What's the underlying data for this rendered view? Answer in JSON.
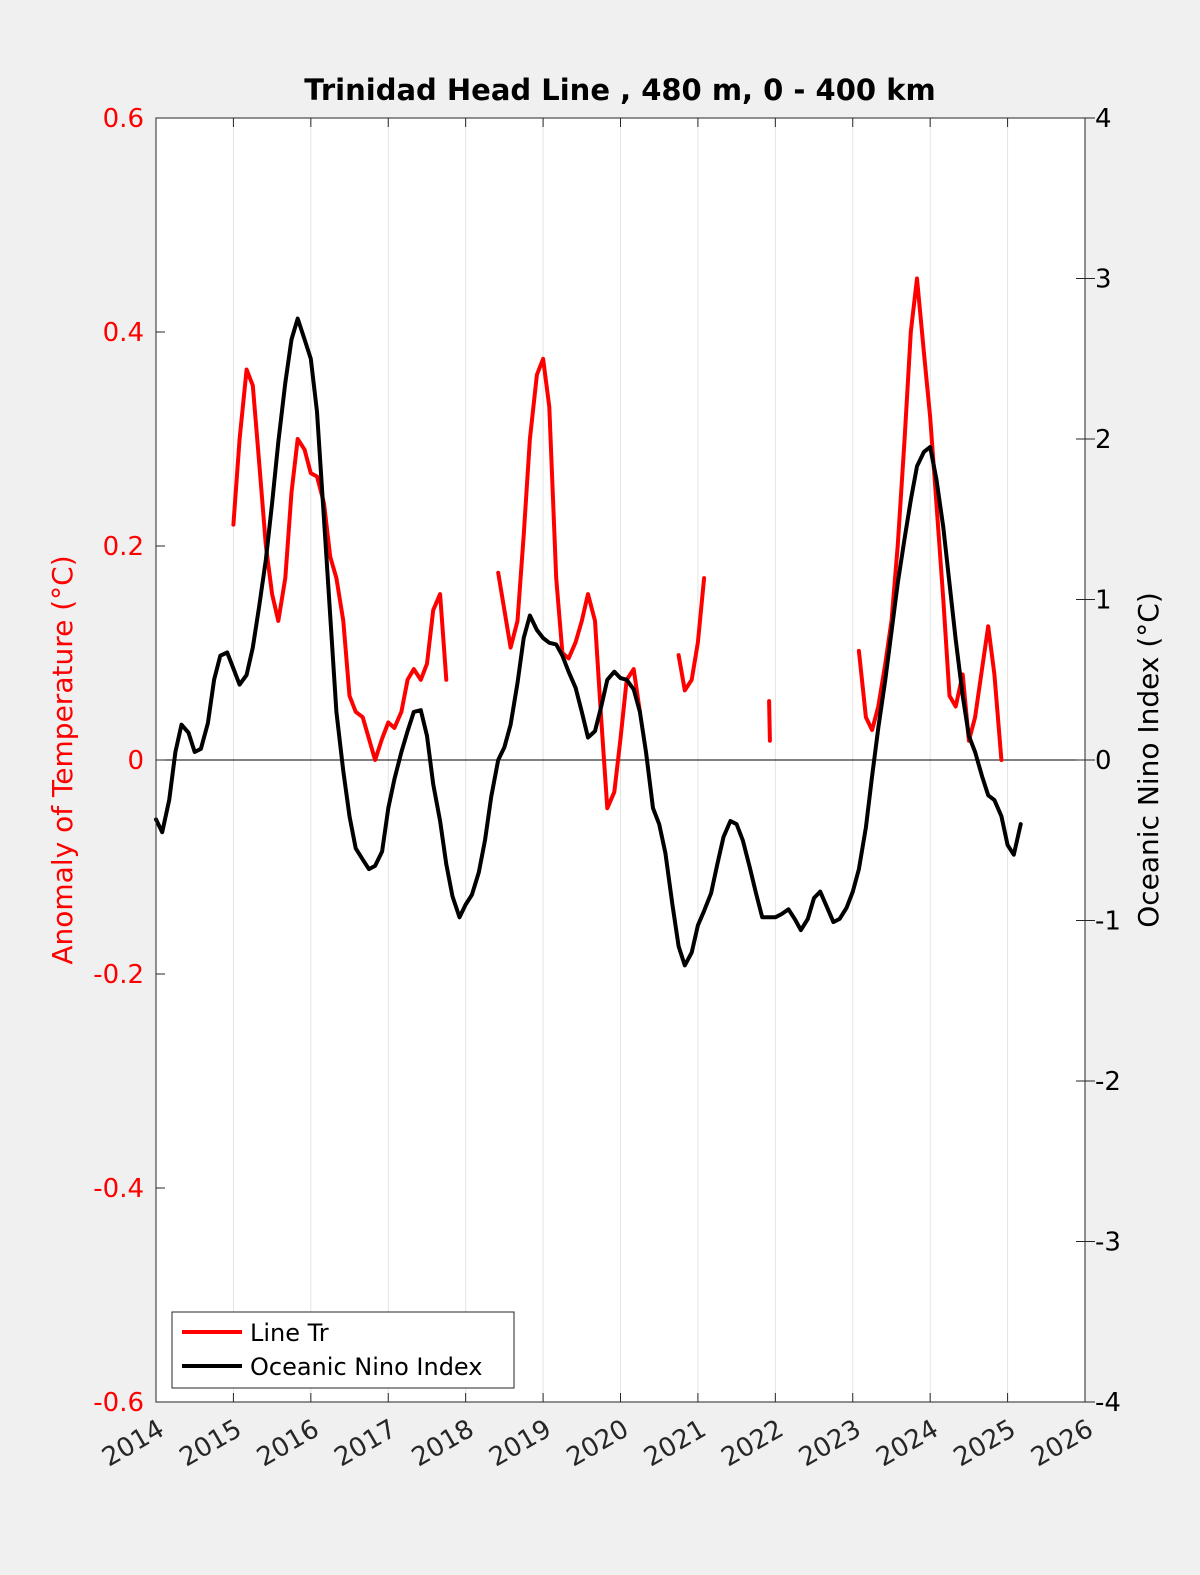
{
  "chart_data": {
    "type": "line",
    "title": "Trinidad Head Line , 480 m, 0 - 400 km",
    "xlabel": "",
    "ylabel_left": "Anomaly of Temperature (°C)",
    "ylabel_right": "Oceanic Nino Index (°C)",
    "xlim": [
      2014,
      2026
    ],
    "ylim_left": [
      -0.6,
      0.6
    ],
    "ylim_right": [
      -4,
      4
    ],
    "x_ticks": [
      "2014",
      "2015",
      "2016",
      "2017",
      "2018",
      "2019",
      "2020",
      "2021",
      "2022",
      "2023",
      "2024",
      "2025",
      "2026"
    ],
    "y_ticks_left": [
      "-0.6",
      "-0.4",
      "-0.2",
      "0",
      "0.2",
      "0.4",
      "0.6"
    ],
    "y_ticks_right": [
      "-4",
      "-3",
      "-2",
      "-1",
      "0",
      "1",
      "2",
      "3",
      "4"
    ],
    "grid": "vertical",
    "legend_position": "bottom-left",
    "colors": {
      "line_tr": "#ff0000",
      "oni": "#000000",
      "left_axis": "#ff0000",
      "right_axis": "#000000"
    },
    "series": [
      {
        "name": "Line Tr",
        "axis": "left",
        "segments": [
          [
            [
              2015.0,
              0.22
            ],
            [
              2015.08,
              0.3
            ],
            [
              2015.17,
              0.365
            ],
            [
              2015.25,
              0.35
            ],
            [
              2015.33,
              0.28
            ],
            [
              2015.42,
              0.2
            ],
            [
              2015.5,
              0.155
            ],
            [
              2015.58,
              0.13
            ],
            [
              2015.67,
              0.17
            ],
            [
              2015.75,
              0.25
            ],
            [
              2015.83,
              0.3
            ],
            [
              2015.92,
              0.29
            ],
            [
              2016.0,
              0.268
            ],
            [
              2016.08,
              0.265
            ],
            [
              2016.17,
              0.24
            ],
            [
              2016.25,
              0.19
            ],
            [
              2016.33,
              0.17
            ],
            [
              2016.42,
              0.13
            ],
            [
              2016.5,
              0.06
            ],
            [
              2016.58,
              0.045
            ],
            [
              2016.67,
              0.04
            ],
            [
              2016.75,
              0.02
            ],
            [
              2016.83,
              0.0
            ],
            [
              2016.92,
              0.02
            ],
            [
              2017.0,
              0.035
            ],
            [
              2017.08,
              0.03
            ],
            [
              2017.17,
              0.045
            ],
            [
              2017.25,
              0.075
            ],
            [
              2017.33,
              0.085
            ],
            [
              2017.42,
              0.075
            ],
            [
              2017.5,
              0.09
            ],
            [
              2017.58,
              0.14
            ],
            [
              2017.67,
              0.155
            ],
            [
              2017.75,
              0.075
            ]
          ],
          [
            [
              2018.42,
              0.175
            ],
            [
              2018.5,
              0.14
            ],
            [
              2018.58,
              0.105
            ],
            [
              2018.67,
              0.13
            ],
            [
              2018.75,
              0.21
            ],
            [
              2018.83,
              0.3
            ],
            [
              2018.92,
              0.36
            ],
            [
              2019.0,
              0.375
            ],
            [
              2019.08,
              0.33
            ],
            [
              2019.17,
              0.17
            ],
            [
              2019.25,
              0.1
            ],
            [
              2019.33,
              0.095
            ],
            [
              2019.42,
              0.11
            ],
            [
              2019.5,
              0.13
            ],
            [
              2019.58,
              0.155
            ],
            [
              2019.67,
              0.13
            ],
            [
              2019.75,
              0.04
            ],
            [
              2019.83,
              -0.045
            ],
            [
              2019.92,
              -0.03
            ],
            [
              2020.0,
              0.02
            ],
            [
              2020.08,
              0.075
            ],
            [
              2020.17,
              0.085
            ],
            [
              2020.25,
              0.045
            ]
          ],
          [
            [
              2020.75,
              0.098
            ],
            [
              2020.83,
              0.065
            ],
            [
              2020.92,
              0.075
            ],
            [
              2021.0,
              0.11
            ],
            [
              2021.08,
              0.17
            ]
          ],
          [
            [
              2021.92,
              0.055
            ],
            [
              2021.93,
              0.018
            ]
          ],
          [
            [
              2023.08,
              0.102
            ],
            [
              2023.17,
              0.04
            ],
            [
              2023.25,
              0.028
            ],
            [
              2023.33,
              0.05
            ],
            [
              2023.42,
              0.09
            ],
            [
              2023.5,
              0.13
            ],
            [
              2023.58,
              0.2
            ],
            [
              2023.67,
              0.3
            ],
            [
              2023.75,
              0.4
            ],
            [
              2023.83,
              0.45
            ],
            [
              2023.92,
              0.38
            ],
            [
              2024.0,
              0.32
            ],
            [
              2024.08,
              0.24
            ],
            [
              2024.17,
              0.15
            ],
            [
              2024.25,
              0.06
            ],
            [
              2024.33,
              0.05
            ],
            [
              2024.42,
              0.08
            ],
            [
              2024.5,
              0.018
            ],
            [
              2024.58,
              0.04
            ],
            [
              2024.67,
              0.085
            ],
            [
              2024.75,
              0.125
            ],
            [
              2024.83,
              0.08
            ],
            [
              2024.92,
              0.0
            ]
          ]
        ]
      },
      {
        "name": "Oceanic Nino Index",
        "axis": "right",
        "segments": [
          [
            [
              2014.0,
              -0.37
            ],
            [
              2014.08,
              -0.45
            ],
            [
              2014.17,
              -0.25
            ],
            [
              2014.25,
              0.05
            ],
            [
              2014.33,
              0.22
            ],
            [
              2014.42,
              0.17
            ],
            [
              2014.5,
              0.05
            ],
            [
              2014.58,
              0.07
            ],
            [
              2014.67,
              0.23
            ],
            [
              2014.75,
              0.5
            ],
            [
              2014.83,
              0.65
            ],
            [
              2014.92,
              0.67
            ],
            [
              2015.0,
              0.57
            ],
            [
              2015.08,
              0.47
            ],
            [
              2015.17,
              0.53
            ],
            [
              2015.25,
              0.7
            ],
            [
              2015.33,
              0.95
            ],
            [
              2015.42,
              1.25
            ],
            [
              2015.5,
              1.6
            ],
            [
              2015.58,
              1.98
            ],
            [
              2015.67,
              2.35
            ],
            [
              2015.75,
              2.62
            ],
            [
              2015.83,
              2.75
            ],
            [
              2015.92,
              2.62
            ],
            [
              2016.0,
              2.5
            ],
            [
              2016.08,
              2.17
            ],
            [
              2016.17,
              1.5
            ],
            [
              2016.25,
              0.9
            ],
            [
              2016.33,
              0.3
            ],
            [
              2016.42,
              -0.07
            ],
            [
              2016.5,
              -0.35
            ],
            [
              2016.58,
              -0.55
            ],
            [
              2016.67,
              -0.62
            ],
            [
              2016.75,
              -0.68
            ],
            [
              2016.83,
              -0.66
            ],
            [
              2016.92,
              -0.57
            ],
            [
              2017.0,
              -0.3
            ],
            [
              2017.08,
              -0.12
            ],
            [
              2017.17,
              0.05
            ],
            [
              2017.25,
              0.18
            ],
            [
              2017.33,
              0.3
            ],
            [
              2017.42,
              0.31
            ],
            [
              2017.5,
              0.15
            ],
            [
              2017.58,
              -0.15
            ],
            [
              2017.67,
              -0.38
            ],
            [
              2017.75,
              -0.65
            ],
            [
              2017.83,
              -0.85
            ],
            [
              2017.92,
              -0.98
            ],
            [
              2018.0,
              -0.9
            ],
            [
              2018.08,
              -0.84
            ],
            [
              2018.17,
              -0.7
            ],
            [
              2018.25,
              -0.5
            ],
            [
              2018.33,
              -0.23
            ],
            [
              2018.42,
              0.0
            ],
            [
              2018.5,
              0.08
            ],
            [
              2018.58,
              0.22
            ],
            [
              2018.67,
              0.48
            ],
            [
              2018.75,
              0.76
            ],
            [
              2018.83,
              0.9
            ],
            [
              2018.92,
              0.81
            ],
            [
              2019.0,
              0.76
            ],
            [
              2019.08,
              0.73
            ],
            [
              2019.17,
              0.72
            ],
            [
              2019.25,
              0.65
            ],
            [
              2019.33,
              0.55
            ],
            [
              2019.42,
              0.45
            ],
            [
              2019.5,
              0.3
            ],
            [
              2019.58,
              0.14
            ],
            [
              2019.67,
              0.18
            ],
            [
              2019.75,
              0.33
            ],
            [
              2019.83,
              0.5
            ],
            [
              2019.92,
              0.55
            ],
            [
              2020.0,
              0.51
            ],
            [
              2020.08,
              0.5
            ],
            [
              2020.17,
              0.44
            ],
            [
              2020.25,
              0.3
            ],
            [
              2020.33,
              0.05
            ],
            [
              2020.42,
              -0.3
            ],
            [
              2020.5,
              -0.4
            ],
            [
              2020.58,
              -0.58
            ],
            [
              2020.67,
              -0.9
            ],
            [
              2020.75,
              -1.16
            ],
            [
              2020.83,
              -1.28
            ],
            [
              2020.92,
              -1.2
            ],
            [
              2021.0,
              -1.03
            ],
            [
              2021.08,
              -0.94
            ],
            [
              2021.17,
              -0.83
            ],
            [
              2021.25,
              -0.65
            ],
            [
              2021.33,
              -0.48
            ],
            [
              2021.42,
              -0.38
            ],
            [
              2021.5,
              -0.4
            ],
            [
              2021.58,
              -0.5
            ],
            [
              2021.67,
              -0.67
            ],
            [
              2021.75,
              -0.83
            ],
            [
              2021.83,
              -0.98
            ],
            [
              2021.92,
              -0.98
            ],
            [
              2022.0,
              -0.98
            ],
            [
              2022.08,
              -0.96
            ],
            [
              2022.17,
              -0.93
            ],
            [
              2022.25,
              -0.99
            ],
            [
              2022.33,
              -1.06
            ],
            [
              2022.42,
              -0.99
            ],
            [
              2022.5,
              -0.86
            ],
            [
              2022.58,
              -0.82
            ],
            [
              2022.67,
              -0.92
            ],
            [
              2022.75,
              -1.01
            ],
            [
              2022.83,
              -0.99
            ],
            [
              2022.92,
              -0.92
            ],
            [
              2023.0,
              -0.82
            ],
            [
              2023.08,
              -0.68
            ],
            [
              2023.17,
              -0.42
            ],
            [
              2023.25,
              -0.1
            ],
            [
              2023.33,
              0.2
            ],
            [
              2023.42,
              0.5
            ],
            [
              2023.5,
              0.8
            ],
            [
              2023.58,
              1.1
            ],
            [
              2023.67,
              1.38
            ],
            [
              2023.75,
              1.62
            ],
            [
              2023.83,
              1.83
            ],
            [
              2023.92,
              1.92
            ],
            [
              2024.0,
              1.95
            ],
            [
              2024.08,
              1.75
            ],
            [
              2024.17,
              1.45
            ],
            [
              2024.25,
              1.1
            ],
            [
              2024.33,
              0.75
            ],
            [
              2024.42,
              0.4
            ],
            [
              2024.5,
              0.15
            ],
            [
              2024.58,
              0.05
            ],
            [
              2024.67,
              -0.1
            ],
            [
              2024.75,
              -0.22
            ],
            [
              2024.83,
              -0.25
            ],
            [
              2024.92,
              -0.35
            ],
            [
              2025.0,
              -0.53
            ],
            [
              2025.08,
              -0.59
            ],
            [
              2025.17,
              -0.4
            ]
          ]
        ]
      }
    ]
  }
}
